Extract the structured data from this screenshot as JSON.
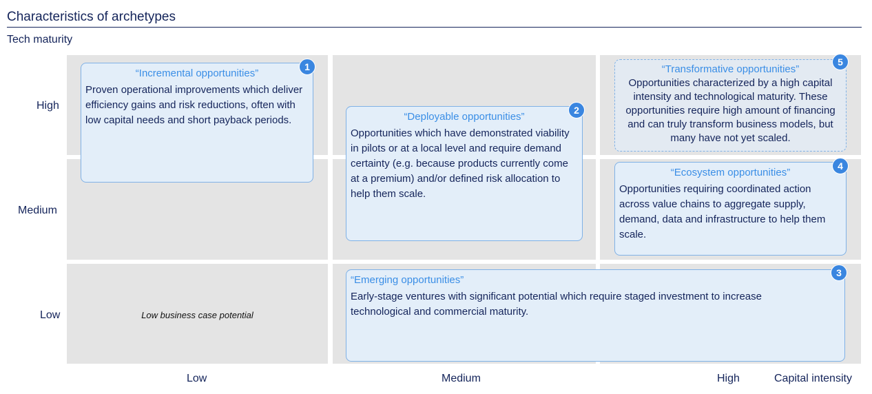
{
  "title": "Characteristics of archetypes",
  "y_axis": {
    "label": "Tech maturity",
    "ticks": [
      "High",
      "Medium",
      "Low"
    ]
  },
  "x_axis": {
    "label": "Capital intensity",
    "ticks": [
      "Low",
      "Medium",
      "High"
    ]
  },
  "low_cell_note": "Low business case potential",
  "colors": {
    "accent": "#3a86e0",
    "box_fill": "#e3eef9",
    "cell": "#e4e4e4",
    "text": "#14245a"
  },
  "boxes": [
    {
      "num": "1",
      "title": "“Incremental opportunities”",
      "text": "Proven operational improvements which deliver efficiency gains and risk reductions, often with low capital needs and short payback periods."
    },
    {
      "num": "2",
      "title": "“Deployable opportunities”",
      "text": "Opportunities which have demonstrated viability in pilots or at a local level and require demand certainty (e.g. because products currently come at a premium) and/or defined risk allocation to help them scale."
    },
    {
      "num": "3",
      "title": "“Emerging opportunities”",
      "text": "Early-stage ventures with significant potential which require staged investment to increase technological and commercial maturity."
    },
    {
      "num": "4",
      "title": "“Ecosystem opportunities”",
      "text": "Opportunities requiring coordinated action across value chains to aggregate supply, demand, data and infrastructure to help them scale."
    },
    {
      "num": "5",
      "title": "“Transformative opportunities”",
      "text": "Opportunities characterized by a high capital intensity and technological maturity. These opportunities require high amount of financing and can truly transform business models, but many have not yet scaled."
    }
  ]
}
